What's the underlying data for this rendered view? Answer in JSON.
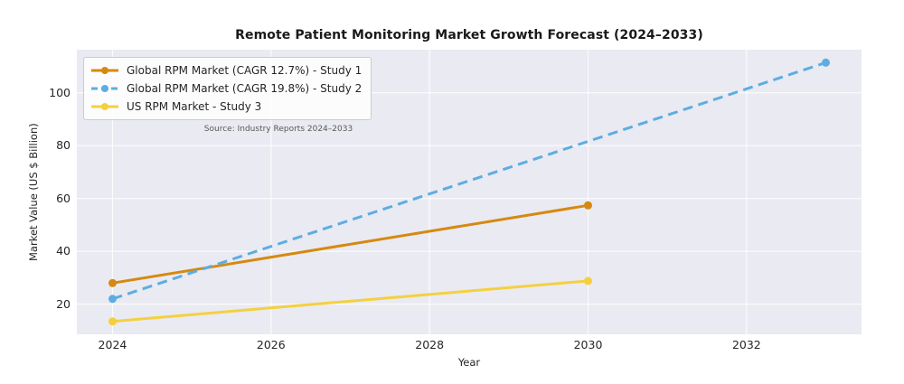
{
  "chart_data": {
    "type": "line",
    "title": "Remote Patient Monitoring Market Growth Forecast (2024–2033)",
    "xlabel": "Year",
    "ylabel": "Market Value (US $ Billion)",
    "annotation": "Source: Industry Reports 2024–2033",
    "xlim": [
      2023.55,
      2033.45
    ],
    "ylim": [
      8.6,
      116.3
    ],
    "xticks": [
      2024,
      2026,
      2028,
      2030,
      2032
    ],
    "yticks": [
      20,
      40,
      60,
      80,
      100
    ],
    "grid": true,
    "legend_position": "upper left",
    "series": [
      {
        "name": "Global RPM Market (CAGR 12.7%) - Study 1",
        "color": "#D68910",
        "line_style": "solid",
        "marker": "circle",
        "x": [
          2024,
          2030
        ],
        "y": [
          28.0,
          57.4
        ]
      },
      {
        "name": "Global RPM Market (CAGR 19.8%) - Study 2",
        "color": "#5DADE2",
        "line_style": "dashed",
        "marker": "circle",
        "x": [
          2024,
          2033
        ],
        "y": [
          22.0,
          111.4
        ]
      },
      {
        "name": "US RPM Market - Study 3",
        "color": "#F4D03F",
        "line_style": "solid",
        "marker": "circle",
        "x": [
          2024,
          2030
        ],
        "y": [
          13.5,
          28.8
        ]
      }
    ],
    "colors": {
      "plot_bg": "#EAEAF2",
      "grid": "#FFFFFF",
      "text": "#262626",
      "muted_text": "#595959",
      "legend_bg": "#FDFDFE",
      "legend_border": "#CCCCCC"
    }
  }
}
